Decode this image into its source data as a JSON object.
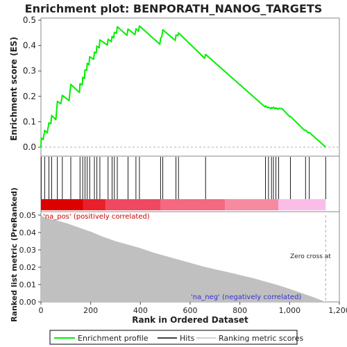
{
  "chart_data": [
    {
      "panel": "enrichment",
      "type": "line",
      "title": "Enrichment plot: BENPORATH_NANOG_TARGETS",
      "ylabel": "Enrichment score (ES)",
      "ylim": [
        0,
        0.5
      ],
      "yticks": [
        "0.0",
        "0.1",
        "0.2",
        "0.3",
        "0.4",
        "0.5"
      ],
      "series": [
        {
          "name": "Enrichment profile",
          "color": "#00ee00",
          "points": [
            [
              0,
              0.0
            ],
            [
              1,
              0.036
            ],
            [
              9,
              0.03
            ],
            [
              15,
              0.066
            ],
            [
              25,
              0.056
            ],
            [
              32,
              0.096
            ],
            [
              40,
              0.092
            ],
            [
              43,
              0.125
            ],
            [
              60,
              0.108
            ],
            [
              66,
              0.18
            ],
            [
              80,
              0.171
            ],
            [
              86,
              0.204
            ],
            [
              113,
              0.183
            ],
            [
              120,
              0.247
            ],
            [
              155,
              0.215
            ],
            [
              157,
              0.25
            ],
            [
              166,
              0.244
            ],
            [
              168,
              0.275
            ],
            [
              175,
              0.27
            ],
            [
              177,
              0.304
            ],
            [
              184,
              0.302
            ],
            [
              186,
              0.33
            ],
            [
              193,
              0.324
            ],
            [
              196,
              0.356
            ],
            [
              212,
              0.346
            ],
            [
              215,
              0.374
            ],
            [
              222,
              0.37
            ],
            [
              225,
              0.398
            ],
            [
              234,
              0.391
            ],
            [
              237,
              0.422
            ],
            [
              267,
              0.402
            ],
            [
              270,
              0.425
            ],
            [
              283,
              0.415
            ],
            [
              286,
              0.436
            ],
            [
              293,
              0.43
            ],
            [
              295,
              0.452
            ],
            [
              304,
              0.448
            ],
            [
              307,
              0.474
            ],
            [
              346,
              0.44
            ],
            [
              350,
              0.465
            ],
            [
              378,
              0.443
            ],
            [
              382,
              0.466
            ],
            [
              392,
              0.456
            ],
            [
              396,
              0.477
            ],
            [
              478,
              0.405
            ],
            [
              481,
              0.428
            ],
            [
              486,
              0.436
            ],
            [
              490,
              0.462
            ],
            [
              540,
              0.42
            ],
            [
              543,
              0.441
            ],
            [
              551,
              0.439
            ],
            [
              553,
              0.45
            ],
            [
              658,
              0.35
            ],
            [
              662,
              0.365
            ],
            [
              900,
              0.159
            ],
            [
              903,
              0.162
            ],
            [
              912,
              0.155
            ],
            [
              915,
              0.157
            ],
            [
              924,
              0.152
            ],
            [
              927,
              0.156
            ],
            [
              932,
              0.153
            ],
            [
              935,
              0.157
            ],
            [
              942,
              0.151
            ],
            [
              945,
              0.155
            ],
            [
              953,
              0.149
            ],
            [
              956,
              0.153
            ],
            [
              970,
              0.151
            ],
            [
              1000,
              0.12
            ],
            [
              1003,
              0.121
            ],
            [
              1060,
              0.066
            ],
            [
              1064,
              0.067
            ],
            [
              1075,
              0.056
            ],
            [
              1079,
              0.058
            ],
            [
              1090,
              0.048
            ],
            [
              1145,
              0.0
            ]
          ]
        }
      ]
    },
    {
      "panel": "hits",
      "type": "scatter",
      "series": [
        {
          "name": "Hits",
          "color": "#000000",
          "x": [
            1,
            15,
            32,
            43,
            66,
            86,
            120,
            157,
            168,
            177,
            186,
            196,
            215,
            225,
            237,
            270,
            286,
            295,
            307,
            350,
            382,
            396,
            481,
            490,
            543,
            553,
            662,
            903,
            915,
            927,
            935,
            945,
            956,
            1003,
            1064,
            1079,
            1145
          ]
        }
      ]
    },
    {
      "panel": "ranked-metric",
      "type": "area",
      "xlabel": "Rank in Ordered Dataset",
      "ylabel": "Ranked list metric (PreRanked)",
      "xlim": [
        0,
        1200
      ],
      "ylim": [
        0,
        0.05
      ],
      "xticks": [
        "0",
        "200",
        "400",
        "600",
        "800",
        "1,000",
        "1,200"
      ],
      "yticks": [
        "0.00",
        "0.01",
        "0.02",
        "0.03",
        "0.04",
        "0.05"
      ],
      "series": [
        {
          "name": "Ranking metric scores",
          "color": "#c0c0c0",
          "points": [
            [
              0,
              0.052
            ],
            [
              10,
              0.049
            ],
            [
              30,
              0.048
            ],
            [
              60,
              0.047
            ],
            [
              100,
              0.0455
            ],
            [
              150,
              0.043
            ],
            [
              200,
              0.0405
            ],
            [
              250,
              0.0375
            ],
            [
              300,
              0.035
            ],
            [
              350,
              0.033
            ],
            [
              400,
              0.031
            ],
            [
              450,
              0.0285
            ],
            [
              500,
              0.0265
            ],
            [
              550,
              0.0245
            ],
            [
              600,
              0.0225
            ],
            [
              650,
              0.0205
            ],
            [
              700,
              0.0188
            ],
            [
              750,
              0.0172
            ],
            [
              800,
              0.0155
            ],
            [
              850,
              0.0138
            ],
            [
              900,
              0.0118
            ],
            [
              950,
              0.0098
            ],
            [
              1000,
              0.0075
            ],
            [
              1050,
              0.005
            ],
            [
              1100,
              0.0025
            ],
            [
              1130,
              0.0008
            ],
            [
              1145,
              0.0
            ]
          ]
        }
      ],
      "annotations": {
        "positive": "'na_pos' (positively correlated)",
        "negative": "'na_neg' (negatively correlated)",
        "zero_cross": "Zero cross at"
      },
      "zero_cross_x": 1145,
      "colorbar": [
        {
          "from": 0,
          "to": 170,
          "color": "#dd0000"
        },
        {
          "from": 170,
          "to": 260,
          "color": "#e8202a"
        },
        {
          "from": 260,
          "to": 480,
          "color": "#f04860"
        },
        {
          "from": 480,
          "to": 740,
          "color": "#f46880"
        },
        {
          "from": 740,
          "to": 955,
          "color": "#f68aa0"
        },
        {
          "from": 955,
          "to": 1145,
          "color": "#fbbde8"
        }
      ]
    }
  ],
  "legend": {
    "items": [
      {
        "label": "Enrichment profile",
        "color": "#00ee00"
      },
      {
        "label": "Hits",
        "color": "#000000"
      },
      {
        "label": "Ranking metric scores",
        "color": "#c0c0c0"
      }
    ]
  }
}
